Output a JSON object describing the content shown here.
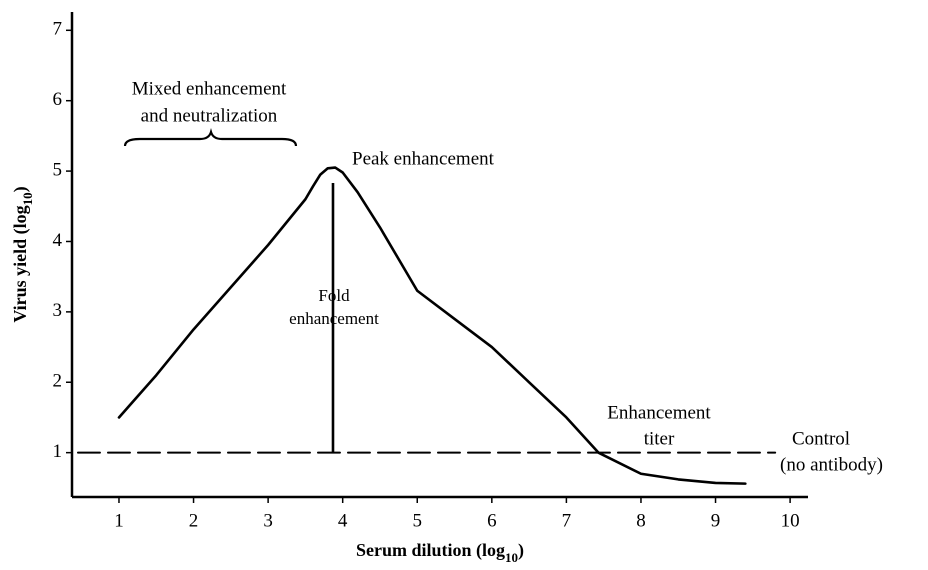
{
  "chart_data": {
    "type": "line",
    "x_label": [
      "Serum dilution (log",
      "10",
      ")"
    ],
    "y_label": [
      "Virus yield (log",
      "10",
      ")"
    ],
    "xlim": [
      0.37,
      10.24
    ],
    "ylim": [
      0.37,
      7.26
    ],
    "xticks": [
      1,
      2,
      3,
      4,
      5,
      6,
      7,
      8,
      9,
      10
    ],
    "yticks": [
      1,
      2,
      3,
      4,
      5,
      6,
      7
    ],
    "grid": false,
    "series": [
      {
        "color": "#000000",
        "style": "solid",
        "x": [
          1,
          1.5,
          2,
          2.5,
          3,
          3.5,
          3.6,
          3.7,
          3.8,
          3.9,
          4.0,
          4.2,
          4.5,
          5,
          5.5,
          6,
          6.5,
          7,
          7.43,
          8,
          8.5,
          9,
          9.4
        ],
        "values": [
          1.5,
          2.1,
          2.75,
          3.35,
          3.95,
          4.6,
          4.78,
          4.95,
          5.04,
          5.05,
          4.98,
          4.7,
          4.2,
          3.3,
          2.9,
          2.5,
          2.0,
          1.5,
          1.0,
          0.7,
          0.62,
          0.57,
          0.56
        ]
      },
      {
        "color": "#000000",
        "style": "dashed",
        "x": [
          0.45,
          9.8
        ],
        "values": [
          1,
          1
        ]
      }
    ],
    "fold_line": {
      "x": 3.87,
      "y": [
        1,
        4.83
      ]
    },
    "annotations": {
      "mixed": [
        "Mixed enhancement",
        "and neutralization"
      ],
      "peak": "Peak enhancement",
      "fold": [
        "Fold",
        "enhancement"
      ],
      "titer": [
        "Enhancement",
        "titer"
      ],
      "control": [
        "Control",
        "(no antibody)"
      ]
    }
  }
}
